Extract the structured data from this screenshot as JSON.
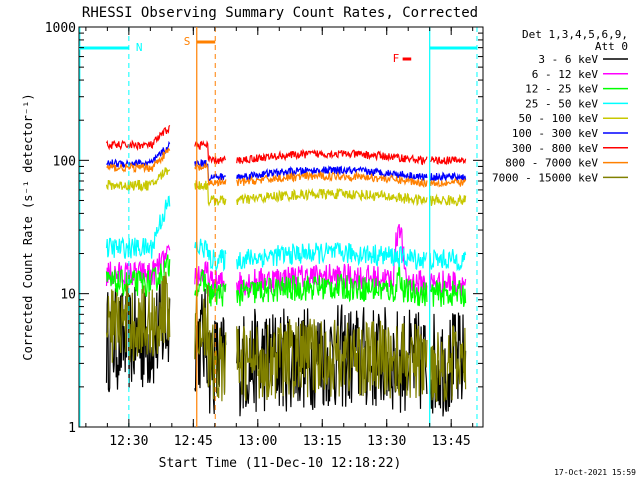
{
  "chart_data": {
    "type": "line",
    "title": "RHESSI Observing Summary Count Rates, Corrected",
    "xlabel": "Start Time (11-Dec-10 12:18:22)",
    "ylabel": "Corrected Count Rate (s⁻¹ detector⁻¹)",
    "y_scale": "log",
    "ylim": [
      1,
      1000
    ],
    "xlim_minutes_after_1218": [
      0,
      94
    ],
    "x_ticks": [
      {
        "label": "12:30",
        "min": 11.6
      },
      {
        "label": "12:45",
        "min": 26.6
      },
      {
        "label": "13:00",
        "min": 41.6
      },
      {
        "label": "13:15",
        "min": 56.6
      },
      {
        "label": "13:30",
        "min": 71.6
      },
      {
        "label": "13:45",
        "min": 86.6
      }
    ],
    "y_ticks": [
      {
        "label": "1000",
        "value": 1000
      },
      {
        "label": "100",
        "value": 100
      },
      {
        "label": "10",
        "value": 10
      },
      {
        "label": "1",
        "value": 1
      }
    ],
    "legend_header": [
      "Det 1,3,4,5,6,9,",
      "Att 0"
    ],
    "legend_placement": "top-right",
    "series": [
      {
        "name": "3 - 6 keV",
        "color": "#000000",
        "segA": 4.5,
        "segB": 3.0,
        "noise": 0.4,
        "spike": 2.4
      },
      {
        "name": "6 - 12 keV",
        "color": "#ff00ff",
        "segA": 14,
        "segB": 12,
        "noise": 0.1,
        "spike": 35
      },
      {
        "name": "12 - 25 keV",
        "color": "#00ff00",
        "segA": 12,
        "segB": 10,
        "noise": 0.1,
        "spike": 16
      },
      {
        "name": "25 - 50 keV",
        "color": "#00ffff",
        "segA": 22,
        "segB": 18,
        "noise": 0.08,
        "spike": 0
      },
      {
        "name": "50 - 100 keV",
        "color": "#c8c800",
        "segA": 65,
        "segB": 50,
        "noise": 0.04,
        "spike": 0
      },
      {
        "name": "100 - 300 keV",
        "color": "#0000ff",
        "segA": 95,
        "segB": 75,
        "noise": 0.03,
        "spike": 0
      },
      {
        "name": "300 - 800 keV",
        "color": "#ff0000",
        "segA": 130,
        "segB": 100,
        "noise": 0.03,
        "spike": 0
      },
      {
        "name": "800 - 7000 keV",
        "color": "#ff8000",
        "segA": 88,
        "segB": 68,
        "noise": 0.03,
        "spike": 0
      },
      {
        "name": "7000 - 15000 keV",
        "color": "#808000",
        "segA": 6.0,
        "segB": 3.0,
        "noise": 0.3,
        "spike": 0
      }
    ],
    "data_gap_minutes": [
      [
        21.2,
        26.9
      ],
      [
        34.2,
        36.6
      ],
      [
        81.0,
        81.6
      ]
    ],
    "markers": [
      {
        "label": "N",
        "color": "#00ffff",
        "kind": "night",
        "bar_start_min": 0,
        "bar_end_min": 11.6
      },
      {
        "label": "N",
        "color": "#00ffff",
        "kind": "night",
        "bar_start_min": 81.6,
        "bar_end_min": 92.6
      },
      {
        "label": "S",
        "color": "#ff8000",
        "kind": "saa",
        "bar_start_min": 27.4,
        "bar_end_min": 31.7
      },
      {
        "label": "F",
        "color": "#ff0000",
        "kind": "flare",
        "bar_start_min": 75.3,
        "bar_end_min": 77.3
      }
    ],
    "footer_date": "17-Oct-2021 15:59",
    "grid": false
  }
}
